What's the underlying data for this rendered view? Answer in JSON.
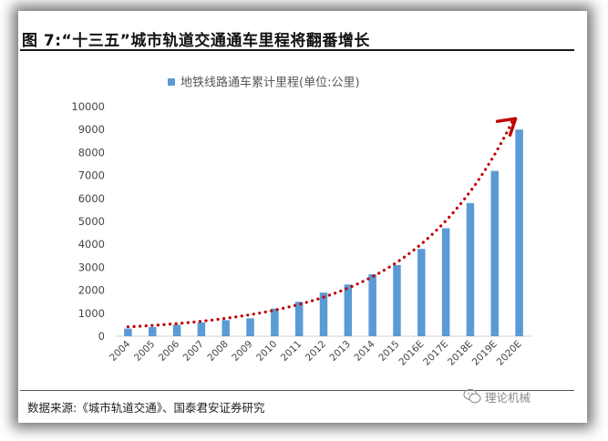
{
  "figure": {
    "title": "图 7:“十三五”城市轨道交通通车里程将翻番增长",
    "source": "数据来源:《城市轨道交通》、国泰君安证券研究",
    "watermark": "理论机械"
  },
  "chart_data": {
    "type": "bar",
    "title": "",
    "xlabel": "",
    "ylabel": "",
    "categories": [
      "2004",
      "2005",
      "2006",
      "2007",
      "2008",
      "2009",
      "2010",
      "2011",
      "2012",
      "2013",
      "2014",
      "2015",
      "2016E",
      "2017E",
      "2018E",
      "2019E",
      "2020E"
    ],
    "series": [
      {
        "name": "地铁线路通车累计里程(单位:公里)",
        "color": "#5b9bd5",
        "values": [
          330,
          400,
          500,
          600,
          700,
          780,
          1200,
          1500,
          1900,
          2250,
          2700,
          3100,
          3800,
          4700,
          5800,
          7200,
          9000
        ]
      }
    ],
    "trendline": {
      "style": "dotted",
      "color": "#c00000",
      "arrow": true
    },
    "ylim": [
      0,
      10000
    ],
    "yticks": [
      0,
      1000,
      2000,
      3000,
      4000,
      5000,
      6000,
      7000,
      8000,
      9000,
      10000
    ],
    "grid": false,
    "legend": "top-center"
  }
}
